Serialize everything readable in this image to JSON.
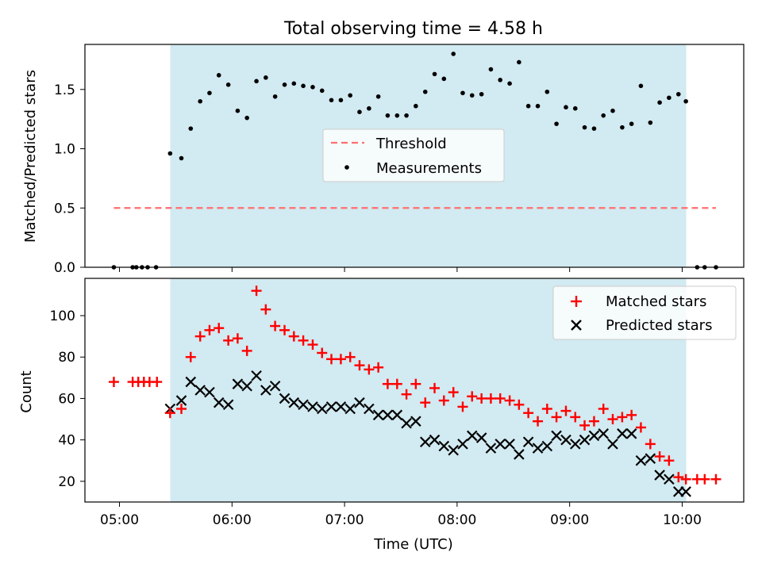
{
  "chart_data": [
    {
      "type": "scatter",
      "title": "Total observing time = 4.58 h",
      "xlabel": "",
      "ylabel": "Matched/Predicted stars",
      "x_ticks": [
        "05:00",
        "06:00",
        "07:00",
        "08:00",
        "09:00",
        "10:00"
      ],
      "y_ticks": [
        "0.0",
        "0.5",
        "1.0",
        "1.5"
      ],
      "ylim": [
        0,
        1.88
      ],
      "xlim_hours": [
        4.693,
        10.547
      ],
      "shaded_span_hours": [
        5.45,
        10.033
      ],
      "shaded_color": "#add8e6",
      "legend_position": "center",
      "threshold": {
        "name": "Threshold",
        "y": 0.5,
        "x_range_hours": [
          4.95,
          10.3
        ],
        "color": "#ff6f6f"
      },
      "measurements": {
        "name": "Measurements",
        "color": "#000000",
        "points": [
          [
            4.95,
            0.0
          ],
          [
            5.117,
            0.0
          ],
          [
            5.15,
            0.0
          ],
          [
            5.2,
            0.0
          ],
          [
            5.25,
            0.0
          ],
          [
            5.325,
            0.0
          ],
          [
            5.45,
            0.96
          ],
          [
            5.55,
            0.92
          ],
          [
            5.633,
            1.17
          ],
          [
            5.717,
            1.4
          ],
          [
            5.8,
            1.47
          ],
          [
            5.883,
            1.62
          ],
          [
            5.967,
            1.54
          ],
          [
            6.05,
            1.32
          ],
          [
            6.133,
            1.26
          ],
          [
            6.217,
            1.57
          ],
          [
            6.3,
            1.6
          ],
          [
            6.383,
            1.44
          ],
          [
            6.467,
            1.54
          ],
          [
            6.55,
            1.55
          ],
          [
            6.633,
            1.53
          ],
          [
            6.717,
            1.52
          ],
          [
            6.8,
            1.49
          ],
          [
            6.883,
            1.41
          ],
          [
            6.967,
            1.41
          ],
          [
            7.05,
            1.45
          ],
          [
            7.133,
            1.31
          ],
          [
            7.217,
            1.34
          ],
          [
            7.3,
            1.44
          ],
          [
            7.383,
            1.28
          ],
          [
            7.467,
            1.28
          ],
          [
            7.55,
            1.28
          ],
          [
            7.633,
            1.36
          ],
          [
            7.717,
            1.48
          ],
          [
            7.8,
            1.63
          ],
          [
            7.883,
            1.59
          ],
          [
            7.967,
            1.8
          ],
          [
            8.05,
            1.47
          ],
          [
            8.133,
            1.45
          ],
          [
            8.217,
            1.46
          ],
          [
            8.3,
            1.67
          ],
          [
            8.383,
            1.58
          ],
          [
            8.467,
            1.55
          ],
          [
            8.55,
            1.73
          ],
          [
            8.633,
            1.36
          ],
          [
            8.717,
            1.36
          ],
          [
            8.8,
            1.48
          ],
          [
            8.883,
            1.21
          ],
          [
            8.967,
            1.35
          ],
          [
            9.05,
            1.34
          ],
          [
            9.133,
            1.18
          ],
          [
            9.217,
            1.17
          ],
          [
            9.3,
            1.28
          ],
          [
            9.383,
            1.32
          ],
          [
            9.467,
            1.18
          ],
          [
            9.55,
            1.21
          ],
          [
            9.633,
            1.53
          ],
          [
            9.717,
            1.22
          ],
          [
            9.8,
            1.39
          ],
          [
            9.883,
            1.43
          ],
          [
            9.967,
            1.46
          ],
          [
            10.033,
            1.4
          ],
          [
            10.133,
            0.0
          ],
          [
            10.2,
            0.0
          ],
          [
            10.3,
            0.0
          ]
        ]
      }
    },
    {
      "type": "scatter",
      "title": "",
      "xlabel": "Time (UTC)",
      "ylabel": "Count",
      "x_ticks": [
        "05:00",
        "06:00",
        "07:00",
        "08:00",
        "09:00",
        "10:00"
      ],
      "y_ticks": [
        "20",
        "40",
        "60",
        "80",
        "100"
      ],
      "ylim": [
        10,
        118
      ],
      "xlim_hours": [
        4.693,
        10.547
      ],
      "shaded_span_hours": [
        5.45,
        10.033
      ],
      "shaded_color": "#add8e6",
      "legend_position": "top-right",
      "series": [
        {
          "name": "Matched stars",
          "marker": "plus",
          "color": "#ff0000",
          "points": [
            [
              4.95,
              68
            ],
            [
              5.117,
              68
            ],
            [
              5.167,
              68
            ],
            [
              5.217,
              68
            ],
            [
              5.267,
              68
            ],
            [
              5.333,
              68
            ],
            [
              5.45,
              53
            ],
            [
              5.55,
              55
            ],
            [
              5.633,
              80
            ],
            [
              5.717,
              90
            ],
            [
              5.8,
              93
            ],
            [
              5.883,
              94
            ],
            [
              5.967,
              88
            ],
            [
              6.05,
              89
            ],
            [
              6.133,
              83
            ],
            [
              6.217,
              112
            ],
            [
              6.3,
              103
            ],
            [
              6.383,
              95
            ],
            [
              6.467,
              93
            ],
            [
              6.55,
              90
            ],
            [
              6.633,
              88
            ],
            [
              6.717,
              86
            ],
            [
              6.8,
              82
            ],
            [
              6.883,
              79
            ],
            [
              6.967,
              79
            ],
            [
              7.05,
              80
            ],
            [
              7.133,
              76
            ],
            [
              7.217,
              74
            ],
            [
              7.3,
              75
            ],
            [
              7.383,
              67
            ],
            [
              7.467,
              67
            ],
            [
              7.55,
              62
            ],
            [
              7.633,
              67
            ],
            [
              7.717,
              58
            ],
            [
              7.8,
              65
            ],
            [
              7.883,
              59
            ],
            [
              7.967,
              63
            ],
            [
              8.05,
              56
            ],
            [
              8.133,
              61
            ],
            [
              8.217,
              60
            ],
            [
              8.3,
              60
            ],
            [
              8.383,
              60
            ],
            [
              8.467,
              59
            ],
            [
              8.55,
              57
            ],
            [
              8.633,
              53
            ],
            [
              8.717,
              49
            ],
            [
              8.8,
              55
            ],
            [
              8.883,
              51
            ],
            [
              8.967,
              54
            ],
            [
              9.05,
              51
            ],
            [
              9.133,
              47
            ],
            [
              9.217,
              49
            ],
            [
              9.3,
              55
            ],
            [
              9.383,
              50
            ],
            [
              9.467,
              51
            ],
            [
              9.55,
              52
            ],
            [
              9.633,
              46
            ],
            [
              9.717,
              38
            ],
            [
              9.8,
              32
            ],
            [
              9.883,
              30
            ],
            [
              9.967,
              22
            ],
            [
              10.033,
              21
            ],
            [
              10.133,
              21
            ],
            [
              10.2,
              21
            ],
            [
              10.3,
              21
            ]
          ]
        },
        {
          "name": "Predicted stars",
          "marker": "x",
          "color": "#000000",
          "points": [
            [
              5.45,
              55
            ],
            [
              5.55,
              59
            ],
            [
              5.633,
              68
            ],
            [
              5.717,
              64
            ],
            [
              5.8,
              63
            ],
            [
              5.883,
              58
            ],
            [
              5.967,
              57
            ],
            [
              6.05,
              67
            ],
            [
              6.133,
              66
            ],
            [
              6.217,
              71
            ],
            [
              6.3,
              64
            ],
            [
              6.383,
              66
            ],
            [
              6.467,
              60
            ],
            [
              6.55,
              58
            ],
            [
              6.633,
              57
            ],
            [
              6.717,
              56
            ],
            [
              6.8,
              55
            ],
            [
              6.883,
              56
            ],
            [
              6.967,
              56
            ],
            [
              7.05,
              55
            ],
            [
              7.133,
              58
            ],
            [
              7.217,
              55
            ],
            [
              7.3,
              52
            ],
            [
              7.383,
              52
            ],
            [
              7.467,
              52
            ],
            [
              7.55,
              48
            ],
            [
              7.633,
              49
            ],
            [
              7.717,
              39
            ],
            [
              7.8,
              40
            ],
            [
              7.883,
              37
            ],
            [
              7.967,
              35
            ],
            [
              8.05,
              38
            ],
            [
              8.133,
              42
            ],
            [
              8.217,
              41
            ],
            [
              8.3,
              36
            ],
            [
              8.383,
              38
            ],
            [
              8.467,
              38
            ],
            [
              8.55,
              33
            ],
            [
              8.633,
              39
            ],
            [
              8.717,
              36
            ],
            [
              8.8,
              37
            ],
            [
              8.883,
              42
            ],
            [
              8.967,
              40
            ],
            [
              9.05,
              38
            ],
            [
              9.133,
              40
            ],
            [
              9.217,
              42
            ],
            [
              9.3,
              43
            ],
            [
              9.383,
              38
            ],
            [
              9.467,
              43
            ],
            [
              9.55,
              43
            ],
            [
              9.633,
              30
            ],
            [
              9.717,
              31
            ],
            [
              9.8,
              23
            ],
            [
              9.883,
              21
            ],
            [
              9.967,
              15
            ],
            [
              10.033,
              15
            ]
          ]
        }
      ]
    }
  ]
}
